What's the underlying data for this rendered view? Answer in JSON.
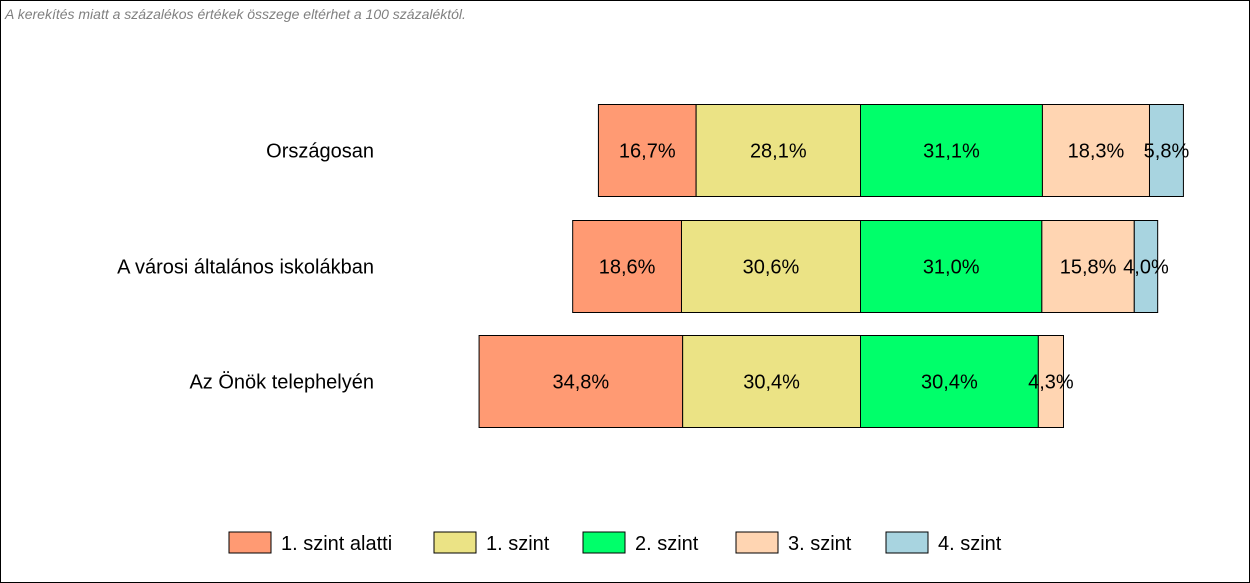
{
  "note": "A kerekítés miatt a  százalékos értékek összege eltérhet a 100 százaléktól.",
  "chart_data": {
    "type": "bar",
    "orientation": "horizontal",
    "stacked": true,
    "categories": [
      "Országosan",
      "A városi általános iskolákban",
      "Az Önök telephelyén"
    ],
    "series": [
      {
        "name": "1. szint alatti",
        "color": "#FF9A73",
        "values": [
          16.7,
          18.6,
          34.8
        ],
        "labels": [
          "16,7%",
          "18,6%",
          "34,8%"
        ]
      },
      {
        "name": "1. szint",
        "color": "#EBE385",
        "values": [
          28.1,
          30.6,
          30.4
        ],
        "labels": [
          "28,1%",
          "30,6%",
          "30,4%"
        ]
      },
      {
        "name": "2. szint",
        "color": "#00FF6A",
        "values": [
          31.1,
          31.0,
          30.4
        ],
        "labels": [
          "31,1%",
          "31,0%",
          "30,4%"
        ]
      },
      {
        "name": "3. szint",
        "color": "#FFD5B2",
        "values": [
          18.3,
          15.8,
          4.3
        ],
        "labels": [
          "18,3%",
          "15,8%",
          "4,3%"
        ]
      },
      {
        "name": "4. szint",
        "color": "#A8D4E0",
        "values": [
          5.8,
          4.0,
          0
        ],
        "labels": [
          "5,8%",
          "4,0%",
          ""
        ]
      }
    ],
    "xlabel": "",
    "ylabel": "",
    "grid": false,
    "legend": "bottom",
    "alignment": "diverging between 1. szint and 2. szint"
  }
}
